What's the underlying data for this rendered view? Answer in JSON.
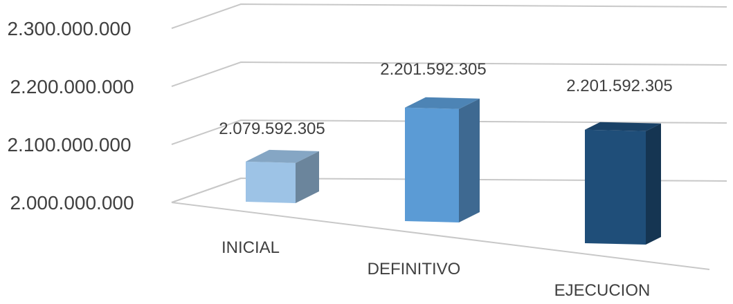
{
  "chart_data": {
    "type": "bar",
    "style": "3d-column",
    "categories": [
      "INICIAL",
      "DEFINITIVO",
      "EJECUCION"
    ],
    "values": [
      2079592305,
      2201592305,
      2201592305
    ],
    "value_labels": [
      "2.079.592.305",
      "2.201.592.305",
      "2.201.592.305"
    ],
    "y_ticks": [
      2000000000,
      2100000000,
      2200000000,
      2300000000
    ],
    "y_tick_labels": [
      "2.000.000.000",
      "2.100.000.000",
      "2.200.000.000",
      "2.300.000.000"
    ],
    "ylim": [
      2000000000,
      2300000000
    ],
    "grid": true,
    "legend": "none",
    "bar_colors": [
      "#9dc3e6",
      "#5b9bd5",
      "#1f4e79"
    ]
  }
}
